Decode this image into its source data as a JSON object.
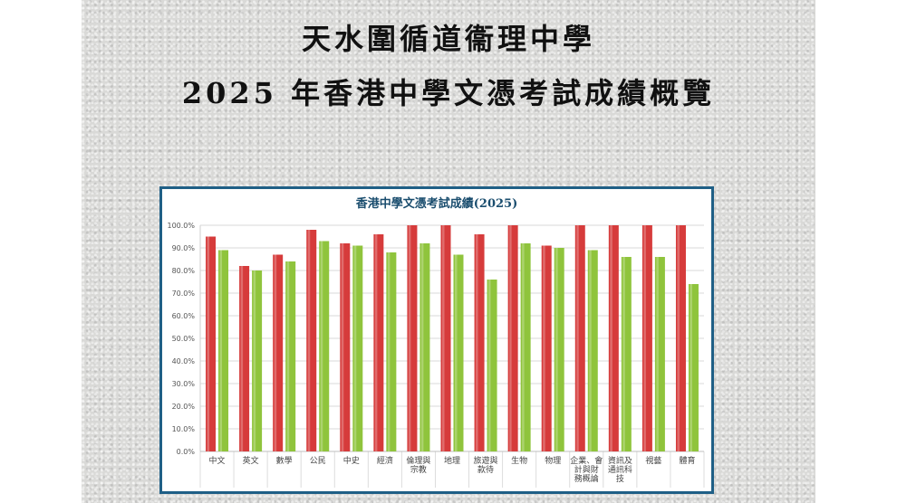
{
  "header": {
    "title_line1": "天水圍循道衞理中學",
    "title_line2": "2025 年香港中學文憑考試成績概覽"
  },
  "colors": {
    "series_red": "#d63b3b",
    "series_green": "#8fc43c",
    "frame": "#1f5f86",
    "grid": "#d9d9d9"
  },
  "chart_data": {
    "type": "bar",
    "title": "香港中學文憑考試成績(2025)",
    "categories": [
      [
        "中文"
      ],
      [
        "英文"
      ],
      [
        "數學"
      ],
      [
        "公民"
      ],
      [
        "中史"
      ],
      [
        "經濟"
      ],
      [
        "倫理與",
        "宗教"
      ],
      [
        "地理"
      ],
      [
        "旅遊與",
        "款待"
      ],
      [
        "生物"
      ],
      [
        "物理"
      ],
      [
        "企業、會",
        "計與財",
        "務概論"
      ],
      [
        "資訊及",
        "通訊科",
        "技"
      ],
      [
        "視藝"
      ],
      [
        "體育"
      ]
    ],
    "series": [
      {
        "values": [
          95,
          82,
          87,
          98,
          92,
          96,
          100,
          100,
          96,
          100,
          91,
          100,
          100,
          100,
          100
        ]
      },
      {
        "values": [
          89,
          80,
          84,
          93,
          91,
          88,
          92,
          87,
          76,
          92,
          90,
          89,
          86,
          86,
          74
        ]
      }
    ],
    "yticks": [
      "0.0%",
      "10.0%",
      "20.0%",
      "30.0%",
      "40.0%",
      "50.0%",
      "60.0%",
      "70.0%",
      "80.0%",
      "90.0%",
      "100.0%"
    ],
    "ylim": [
      0,
      100
    ],
    "grid": true,
    "legend": "none"
  }
}
